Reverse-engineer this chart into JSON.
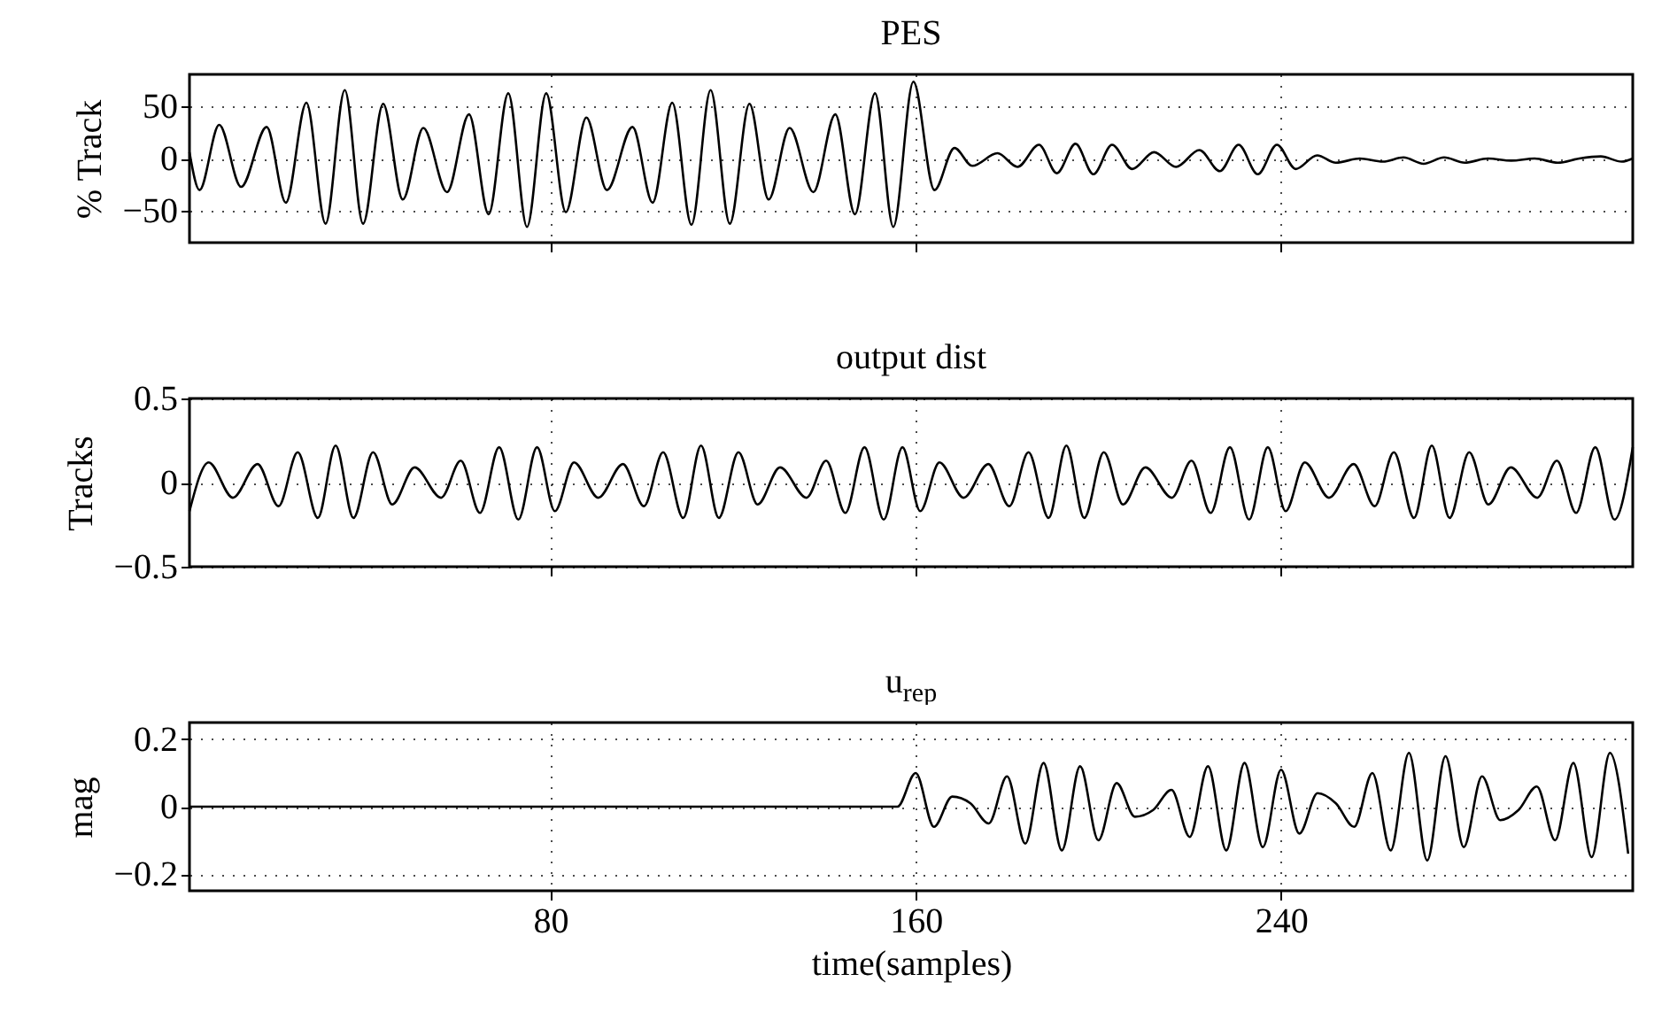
{
  "chart_data": [
    {
      "type": "line",
      "title": "PES",
      "ylabel": "% Track",
      "xlim": [
        1,
        317
      ],
      "xticks": [
        80,
        160,
        240
      ],
      "ylim": [
        -80,
        80
      ],
      "yticks": [
        -50,
        0,
        50
      ],
      "grid": true,
      "tick_labels": "y",
      "series": [
        {
          "color": "#000000",
          "x": [
            1,
            3.2,
            7.5,
            12.3,
            17.9,
            22.1,
            26.6,
            30.8,
            35,
            39,
            43.4,
            47.7,
            52.2,
            57.4,
            62.2,
            66.5,
            70.8,
            74.9,
            79.1,
            83.4,
            87.9,
            92.4,
            98,
            102.4,
            106.7,
            110.9,
            115.1,
            119.3,
            123.6,
            127.8,
            132.4,
            137.6,
            142.4,
            146.7,
            151.1,
            155.1,
            159.5,
            164.1,
            168.5,
            172.4,
            177.9,
            182.3,
            187,
            190.9,
            195,
            198.9,
            203,
            207.4,
            212.2,
            217,
            222.1,
            226.6,
            230.7,
            234.9,
            239.1,
            243.2,
            247.9,
            252,
            257.2,
            262.3,
            266.8,
            271.2,
            275.7,
            280.2,
            285.3,
            290.4,
            295.5,
            300.6,
            305.3,
            310,
            314.6,
            317
          ],
          "values": [
            6,
            -30,
            32,
            -27,
            30,
            -42,
            53,
            -62,
            65,
            -62,
            52,
            -39,
            29,
            -32,
            42,
            -53,
            62,
            -65,
            62,
            -51,
            39,
            -30,
            30,
            -42,
            53,
            -63,
            65,
            -62,
            52,
            -39,
            29,
            -32,
            42,
            -53,
            62,
            -65,
            73,
            -30,
            10,
            -7,
            5,
            -8,
            13,
            -14,
            14,
            -15,
            13,
            -10,
            6,
            -8,
            8,
            -12,
            13,
            -15,
            13,
            -10,
            3,
            -4,
            0,
            -3,
            1,
            -5,
            1,
            -4,
            0,
            -2,
            0,
            -4,
            0,
            2,
            -3,
            0
          ]
        }
      ]
    },
    {
      "type": "line",
      "title": "output dist",
      "ylabel": "Tracks",
      "xlim": [
        1,
        317
      ],
      "xticks": [
        80,
        160,
        240
      ],
      "ylim": [
        -0.5,
        0.5
      ],
      "yticks": [
        -0.5,
        0,
        0.5
      ],
      "grid": true,
      "tick_labels": "y",
      "series": [
        {
          "color": "#000000",
          "x": [
            1,
            5.2,
            10.5,
            15.9,
            20.5,
            24.7,
            29.1,
            33,
            36.9,
            41.2,
            45.4,
            50.3,
            56.1,
            60.4,
            64.6,
            68.8,
            73,
            77.1,
            81,
            85.2,
            90.5,
            95.9,
            100.5,
            104.7,
            109.1,
            113,
            116.9,
            121.2,
            125.4,
            130.3,
            136.1,
            140.4,
            144.6,
            148.8,
            153,
            157.1,
            161,
            165.2,
            170.5,
            175.9,
            180.5,
            184.7,
            189.1,
            193,
            196.9,
            201.2,
            205.4,
            210.3,
            216.1,
            220.4,
            224.6,
            228.8,
            233,
            237.1,
            241,
            245.2,
            250.5,
            255.9,
            260.5,
            264.7,
            269.1,
            273,
            276.9,
            281.2,
            285.4,
            290.3,
            296.1,
            300.4,
            304.6,
            308.8,
            313,
            317
          ],
          "values": [
            -0.17,
            0.12,
            -0.09,
            0.11,
            -0.14,
            0.18,
            -0.21,
            0.22,
            -0.21,
            0.18,
            -0.13,
            0.09,
            -0.09,
            0.13,
            -0.18,
            0.21,
            -0.22,
            0.21,
            -0.17,
            0.12,
            -0.09,
            0.11,
            -0.14,
            0.18,
            -0.21,
            0.22,
            -0.21,
            0.18,
            -0.13,
            0.09,
            -0.09,
            0.13,
            -0.18,
            0.21,
            -0.22,
            0.21,
            -0.17,
            0.12,
            -0.09,
            0.11,
            -0.14,
            0.18,
            -0.21,
            0.22,
            -0.21,
            0.18,
            -0.13,
            0.09,
            -0.09,
            0.13,
            -0.18,
            0.21,
            -0.22,
            0.21,
            -0.17,
            0.12,
            -0.09,
            0.11,
            -0.14,
            0.18,
            -0.21,
            0.22,
            -0.21,
            0.18,
            -0.13,
            0.09,
            -0.09,
            0.13,
            -0.18,
            0.21,
            -0.22,
            0.21
          ]
        }
      ]
    },
    {
      "type": "line",
      "title": "u$_{rep}$",
      "ylabel": "mag",
      "xlabel": "time(samples)",
      "xlim": [
        1,
        317
      ],
      "xticks": [
        80,
        160,
        240
      ],
      "ylim": [
        -0.25,
        0.25
      ],
      "yticks": [
        -0.2,
        0,
        0.2
      ],
      "grid": true,
      "series": [
        {
          "color": "#000000",
          "x": [
            1,
            156,
            160,
            164,
            168,
            172,
            176,
            180,
            184,
            188,
            192,
            196,
            200,
            204,
            208,
            212,
            216,
            220,
            224,
            228,
            232,
            236,
            240,
            244,
            248,
            252,
            256,
            260,
            264,
            268,
            272,
            276,
            280,
            284,
            288,
            292,
            296,
            300,
            304,
            308,
            312,
            316
          ],
          "values": [
            0,
            0,
            0.1,
            -0.06,
            0.03,
            0.01,
            -0.05,
            0.09,
            -0.11,
            0.13,
            -0.13,
            0.12,
            -0.1,
            0.07,
            -0.03,
            -0.01,
            0.05,
            -0.09,
            0.12,
            -0.13,
            0.13,
            -0.12,
            0.11,
            -0.08,
            0.04,
            0.01,
            -0.06,
            0.1,
            -0.13,
            0.16,
            -0.16,
            0.15,
            -0.12,
            0.09,
            -0.04,
            -0.01,
            0.06,
            -0.1,
            0.13,
            -0.15,
            0.16,
            -0.14
          ]
        }
      ]
    }
  ]
}
